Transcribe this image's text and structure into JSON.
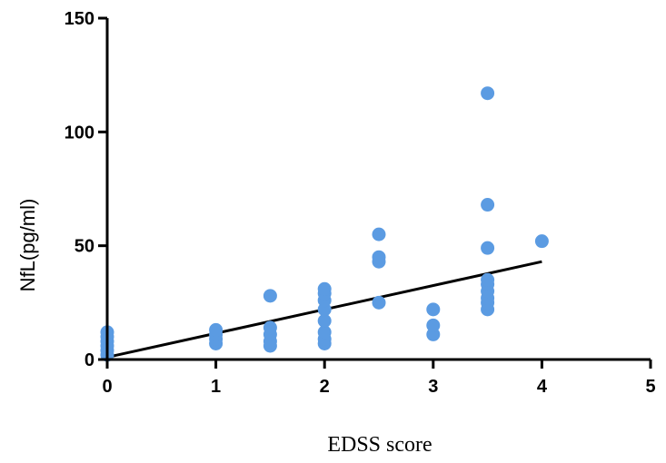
{
  "chart_data": {
    "type": "scatter",
    "title": "",
    "xlabel": "EDSS score",
    "ylabel": "NfL(pg/ml)",
    "xlim": [
      0,
      5
    ],
    "ylim": [
      0,
      150
    ],
    "xticks": [
      0,
      1,
      2,
      3,
      4,
      5
    ],
    "yticks": [
      0,
      50,
      100,
      150
    ],
    "grid": false,
    "point_color": "#5b9be2",
    "line_color": "#000000",
    "series": [
      {
        "points": [
          [
            0,
            2
          ],
          [
            0,
            4
          ],
          [
            0,
            6
          ],
          [
            0,
            8
          ],
          [
            0,
            10
          ],
          [
            0,
            12
          ],
          [
            1,
            7
          ],
          [
            1,
            9
          ],
          [
            1,
            11
          ],
          [
            1,
            13
          ],
          [
            1.5,
            6
          ],
          [
            1.5,
            8
          ],
          [
            1.5,
            11
          ],
          [
            1.5,
            14
          ],
          [
            1.5,
            28
          ],
          [
            2,
            7
          ],
          [
            2,
            9
          ],
          [
            2,
            12
          ],
          [
            2,
            17
          ],
          [
            2,
            22
          ],
          [
            2,
            26
          ],
          [
            2,
            29
          ],
          [
            2,
            31
          ],
          [
            2.5,
            25
          ],
          [
            2.5,
            43
          ],
          [
            2.5,
            45
          ],
          [
            2.5,
            55
          ],
          [
            3,
            11
          ],
          [
            3,
            15
          ],
          [
            3,
            22
          ],
          [
            3.5,
            22
          ],
          [
            3.5,
            25
          ],
          [
            3.5,
            27
          ],
          [
            3.5,
            30
          ],
          [
            3.5,
            33
          ],
          [
            3.5,
            35
          ],
          [
            3.5,
            49
          ],
          [
            3.5,
            68
          ],
          [
            3.5,
            117
          ],
          [
            4,
            52
          ]
        ]
      }
    ],
    "trendline": {
      "x": [
        0,
        4
      ],
      "y": [
        1,
        43
      ]
    }
  }
}
